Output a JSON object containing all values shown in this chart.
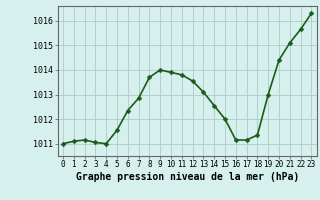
{
  "x": [
    0,
    1,
    2,
    3,
    4,
    5,
    6,
    7,
    8,
    9,
    10,
    11,
    12,
    13,
    14,
    15,
    16,
    17,
    18,
    19,
    20,
    21,
    22,
    23
  ],
  "y": [
    1011.0,
    1011.1,
    1011.15,
    1011.05,
    1011.0,
    1011.55,
    1012.35,
    1012.85,
    1013.7,
    1014.0,
    1013.9,
    1013.8,
    1013.55,
    1013.1,
    1012.55,
    1012.0,
    1011.15,
    1011.15,
    1011.35,
    1013.0,
    1014.4,
    1015.1,
    1015.65,
    1016.3
  ],
  "line_color": "#1a5c1a",
  "marker": "D",
  "marker_size": 2.5,
  "background_color": "#d6f0ee",
  "grid_color": "#b0c8c8",
  "xlabel": "Graphe pression niveau de la mer (hPa)",
  "xlabel_fontsize": 7,
  "yticks": [
    1011,
    1012,
    1013,
    1014,
    1015,
    1016
  ],
  "xticks": [
    0,
    1,
    2,
    3,
    4,
    5,
    6,
    7,
    8,
    9,
    10,
    11,
    12,
    13,
    14,
    15,
    16,
    17,
    18,
    19,
    20,
    21,
    22,
    23
  ],
  "ylim": [
    1010.5,
    1016.6
  ],
  "xlim": [
    -0.5,
    23.5
  ],
  "ytick_fontsize": 6,
  "xtick_fontsize": 5.5,
  "line_width": 1.2
}
